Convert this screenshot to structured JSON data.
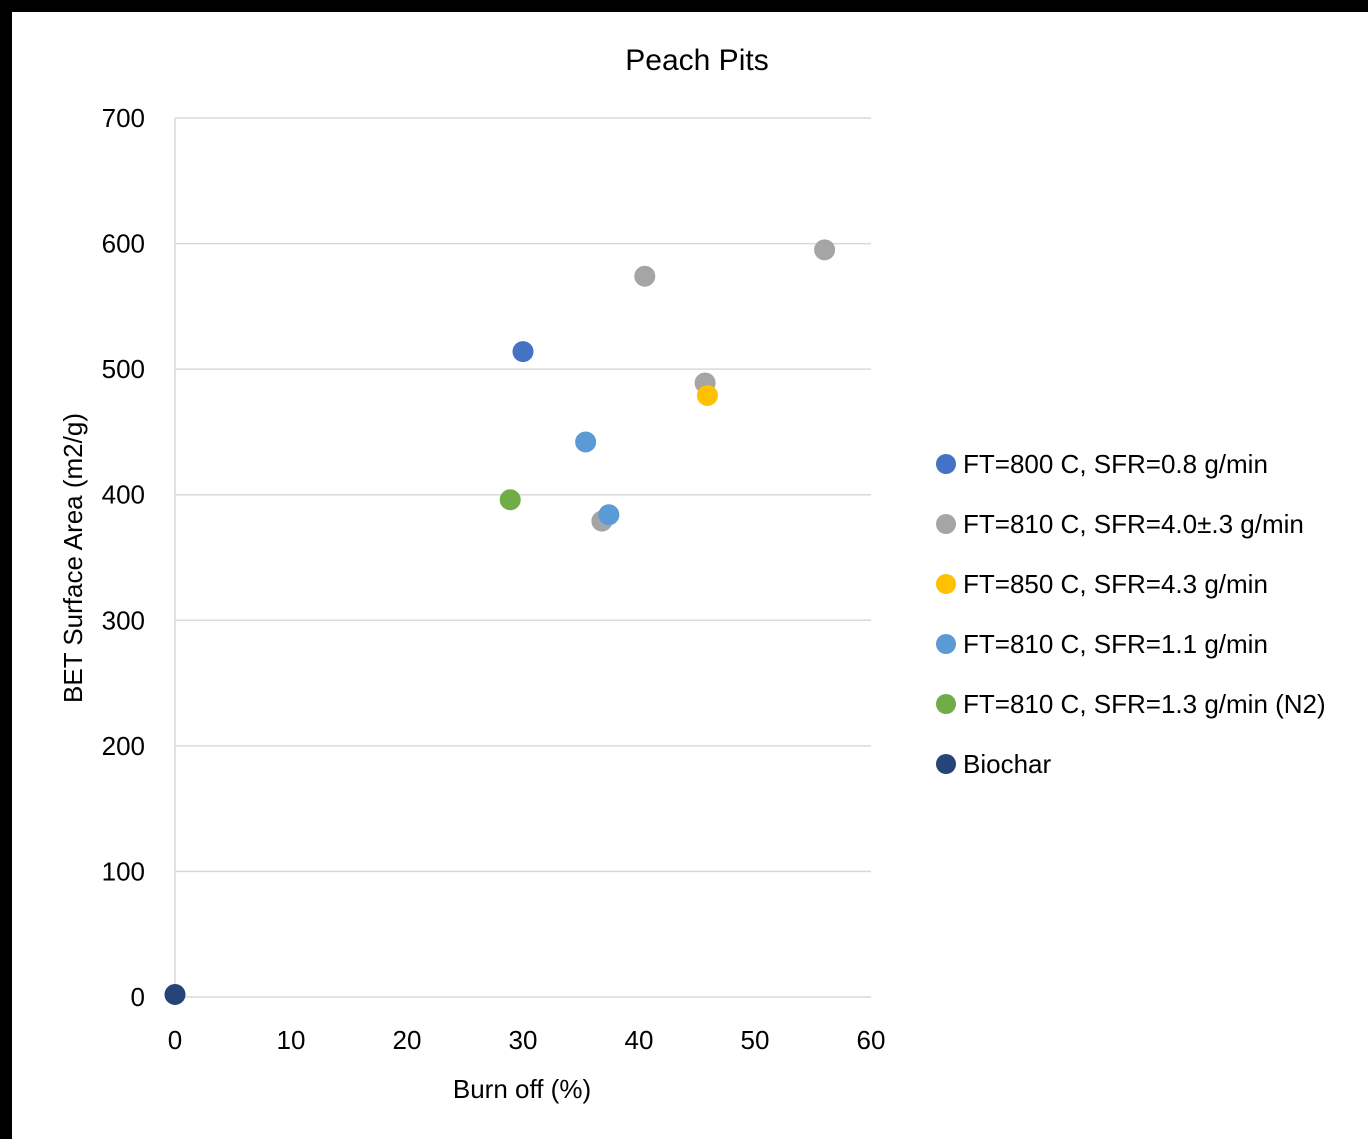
{
  "chart_data": {
    "type": "scatter",
    "title": "Peach Pits",
    "xlabel": "Burn off (%)",
    "ylabel": "BET Surface Area (m2/g)",
    "xlim": [
      0,
      60
    ],
    "ylim": [
      0,
      700
    ],
    "xticks": [
      "0",
      "10",
      "20",
      "30",
      "40",
      "50",
      "60"
    ],
    "yticks": [
      "0",
      "100",
      "200",
      "300",
      "400",
      "500",
      "600",
      "700"
    ],
    "grid": "horizontal",
    "legend_position": "right",
    "series": [
      {
        "name": "FT=800 C, SFR=0.8 g/min",
        "color": "#4472C4",
        "points": [
          {
            "x": 30.0,
            "y": 514
          }
        ]
      },
      {
        "name": "FT=810 C, SFR=4.0±.3 g/min",
        "color": "#A5A5A5",
        "points": [
          {
            "x": 40.5,
            "y": 574
          },
          {
            "x": 45.7,
            "y": 489
          },
          {
            "x": 36.8,
            "y": 379
          },
          {
            "x": 56.0,
            "y": 595
          }
        ]
      },
      {
        "name": "FT=850 C, SFR=4.3 g/min",
        "color": "#FFC000",
        "points": [
          {
            "x": 45.9,
            "y": 479
          }
        ]
      },
      {
        "name": "FT=810 C, SFR=1.1 g/min",
        "color": "#5B9BD5",
        "points": [
          {
            "x": 35.4,
            "y": 442
          },
          {
            "x": 37.4,
            "y": 384
          }
        ]
      },
      {
        "name": "FT=810 C, SFR=1.3 g/min (N2)",
        "color": "#70AD47",
        "points": [
          {
            "x": 28.9,
            "y": 396
          }
        ]
      },
      {
        "name": "Biochar",
        "color": "#264478",
        "points": [
          {
            "x": 0.0,
            "y": 2
          }
        ]
      }
    ]
  }
}
